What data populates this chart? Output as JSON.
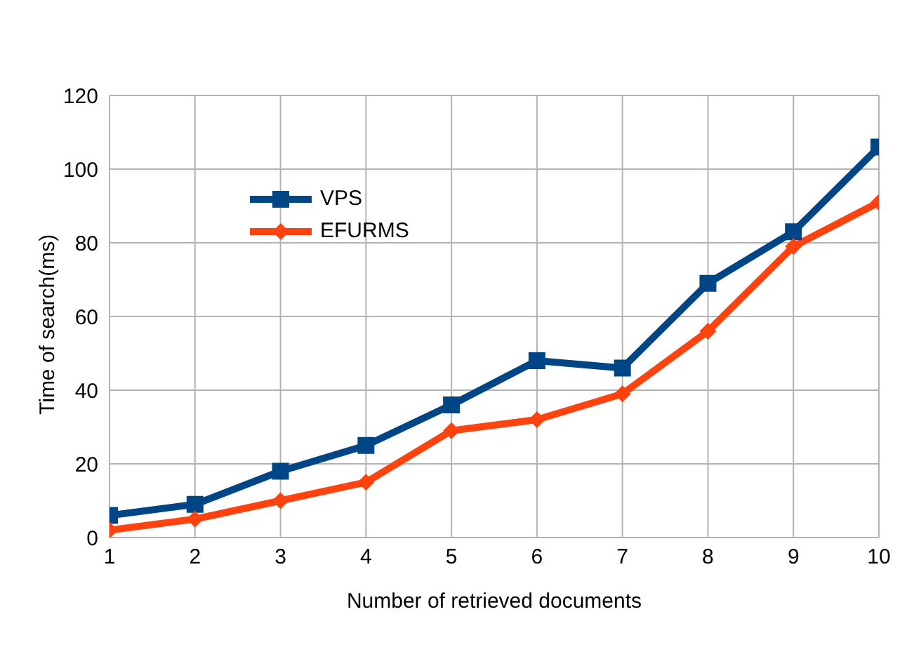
{
  "chart_data": {
    "type": "line",
    "xlabel": "Number of retrieved documents",
    "ylabel": "Time of search(ms)",
    "x": [
      1,
      2,
      3,
      4,
      5,
      6,
      7,
      8,
      9,
      10
    ],
    "series": [
      {
        "name": "VPS",
        "color": "#004586",
        "marker": "square",
        "values": [
          6,
          9,
          18,
          25,
          36,
          48,
          46,
          69,
          83,
          106
        ]
      },
      {
        "name": "EFURMS",
        "color": "#ff420e",
        "marker": "diamond",
        "values": [
          2,
          5,
          10,
          15,
          29,
          32,
          39,
          56,
          79,
          91
        ]
      }
    ],
    "xlim": [
      1,
      10
    ],
    "xticks": [
      1,
      2,
      3,
      4,
      5,
      6,
      7,
      8,
      9,
      10
    ],
    "ylim": [
      0,
      120
    ],
    "yticks": [
      0,
      20,
      40,
      60,
      80,
      100,
      120
    ],
    "grid": true,
    "legend": "top left",
    "line_style": "solid"
  }
}
